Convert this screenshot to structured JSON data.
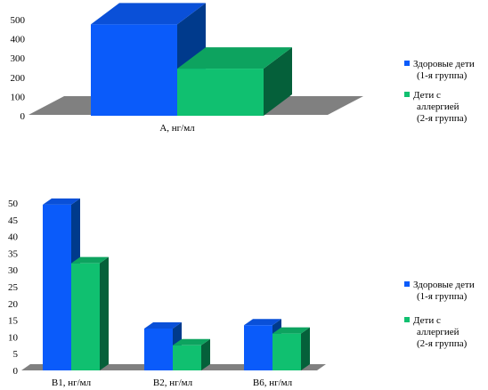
{
  "chart_data": [
    {
      "type": "bar",
      "categories": [
        "A, нг/мл"
      ],
      "series": [
        {
          "name": "Здоровые дети (1-я группа)",
          "values": [
            475
          ]
        },
        {
          "name": "Дети с аллергией (2-я группа)",
          "values": [
            245
          ]
        }
      ],
      "yticks": [
        "0",
        "100",
        "200",
        "300",
        "400",
        "500"
      ],
      "ylim": [
        0,
        500
      ],
      "legend": "right",
      "legend_entries": [
        [
          "Здоровые дети",
          "(1-я группа)"
        ],
        [
          "Дети с",
          "аллергией",
          "(2-я группа)"
        ]
      ],
      "grid": false
    },
    {
      "type": "bar",
      "categories": [
        "B1, нг/мл",
        "B2, нг/мл",
        "B6, нг/мл"
      ],
      "series": [
        {
          "name": "Здоровые дети (1-я группа)",
          "values": [
            49.5,
            12.5,
            13.5
          ]
        },
        {
          "name": "Дети с аллергией (2-я группа)",
          "values": [
            32,
            7.5,
            11
          ]
        }
      ],
      "yticks": [
        "0",
        "5",
        "10",
        "15",
        "20",
        "25",
        "30",
        "35",
        "40",
        "45",
        "50"
      ],
      "ylim": [
        0,
        50
      ],
      "legend": "right",
      "legend_entries": [
        [
          "Здоровые дети",
          "(1-я группа)"
        ],
        [
          "Дети с",
          "аллергией",
          "(2-я группа)"
        ]
      ],
      "grid": false
    }
  ],
  "colors": {
    "series1_front": "#0a5bfa",
    "series1_top": "#0a50d8",
    "series1_side": "#003a8c",
    "series2_front": "#10c070",
    "series2_top": "#0da35f",
    "series2_side": "#05603a",
    "floor": "#808080"
  }
}
